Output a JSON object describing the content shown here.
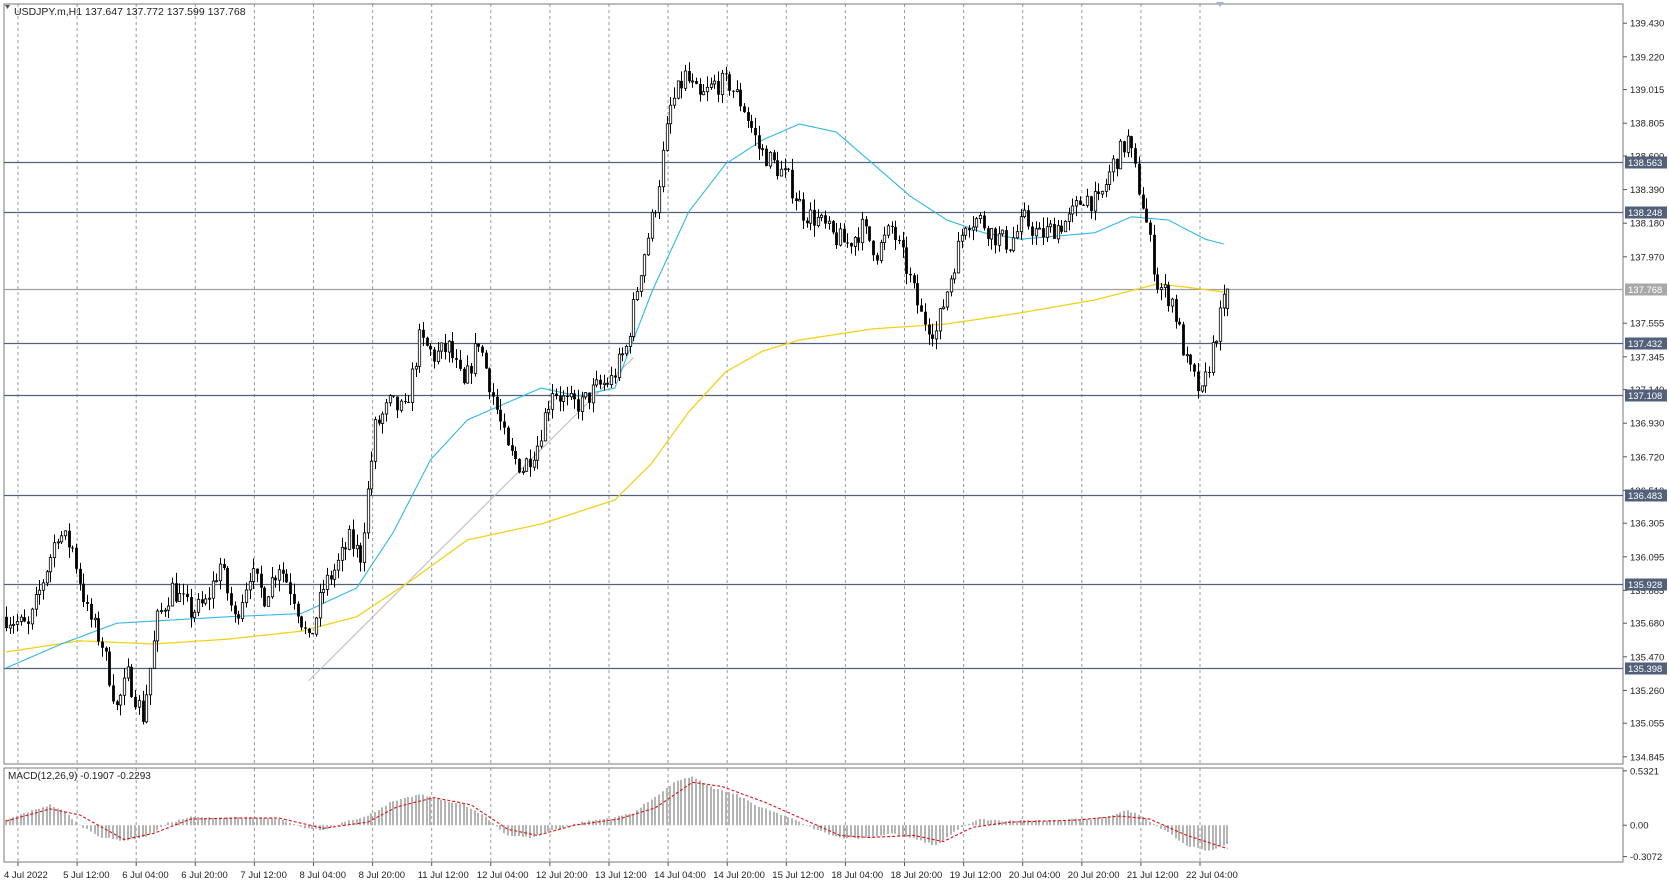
{
  "header": {
    "main_label": "USDJPY.m,H1  137.647 137.772 137.599 137.768",
    "macd_label": "MACD(12,26,9) -0.1907 -0.2293"
  },
  "colors": {
    "candle": "#000000",
    "ma_fast": "#30b8e8",
    "ma_slow": "#f2d21c",
    "grid": "#707070",
    "hline": "#52607a",
    "current_line": "#a0a0a0",
    "macd_hist": "#b4b4b4",
    "macd_signal": "#e01010",
    "trendline": "#b8b8b8"
  },
  "chart_data": [
    {
      "type": "candlestick",
      "symbol": "USDJPY.m",
      "timeframe": "H1",
      "last_ohlc": {
        "open": 137.647,
        "high": 137.772,
        "low": 137.599,
        "close": 137.768
      },
      "ylim": [
        134.8,
        139.55
      ],
      "y_ticks": [
        "139.430",
        "139.220",
        "139.015",
        "138.805",
        "138.600",
        "138.390",
        "138.180",
        "137.970",
        "137.555",
        "137.345",
        "137.140",
        "136.930",
        "136.720",
        "136.510",
        "136.305",
        "136.095",
        "135.885",
        "135.680",
        "135.470",
        "135.260",
        "135.055",
        "134.845"
      ],
      "x_ticks": [
        "4 Jul 2022",
        "5 Jul 12:00",
        "6 Jul 04:00",
        "6 Jul 20:00",
        "7 Jul 12:00",
        "8 Jul 04:00",
        "8 Jul 20:00",
        "11 Jul 12:00",
        "12 Jul 04:00",
        "12 Jul 20:00",
        "13 Jul 12:00",
        "14 Jul 04:00",
        "14 Jul 20:00",
        "15 Jul 12:00",
        "18 Jul 04:00",
        "18 Jul 20:00",
        "19 Jul 12:00",
        "20 Jul 04:00",
        "20 Jul 20:00",
        "21 Jul 12:00",
        "22 Jul 04:00"
      ],
      "price_levels": [
        {
          "value": 138.563,
          "label": "138.563"
        },
        {
          "value": 138.248,
          "label": "138.248"
        },
        {
          "value": 137.768,
          "label": "137.768",
          "current": true
        },
        {
          "value": 137.432,
          "label": "137.432"
        },
        {
          "value": 137.108,
          "label": "137.108"
        },
        {
          "value": 136.483,
          "label": "136.483"
        },
        {
          "value": 135.928,
          "label": "135.928"
        },
        {
          "value": 135.398,
          "label": "135.398"
        }
      ],
      "close_anchors": [
        [
          0,
          135.72
        ],
        [
          6,
          135.65
        ],
        [
          10,
          135.95
        ],
        [
          14,
          136.25
        ],
        [
          18,
          136.15
        ],
        [
          22,
          135.75
        ],
        [
          26,
          135.55
        ],
        [
          30,
          135.15
        ],
        [
          33,
          135.35
        ],
        [
          37,
          135.1
        ],
        [
          41,
          135.7
        ],
        [
          45,
          135.9
        ],
        [
          50,
          135.75
        ],
        [
          54,
          135.8
        ],
        [
          58,
          136.05
        ],
        [
          62,
          135.7
        ],
        [
          66,
          136.0
        ],
        [
          70,
          135.85
        ],
        [
          74,
          136.05
        ],
        [
          78,
          135.85
        ],
        [
          82,
          135.55
        ],
        [
          86,
          135.9
        ],
        [
          90,
          136.05
        ],
        [
          93,
          136.2
        ],
        [
          96,
          136.1
        ],
        [
          100,
          136.9
        ],
        [
          104,
          137.05
        ],
        [
          108,
          137.0
        ],
        [
          112,
          137.45
        ],
        [
          116,
          137.35
        ],
        [
          120,
          137.4
        ],
        [
          124,
          137.15
        ],
        [
          128,
          137.45
        ],
        [
          132,
          137.1
        ],
        [
          136,
          136.75
        ],
        [
          140,
          136.65
        ],
        [
          144,
          136.8
        ],
        [
          148,
          137.15
        ],
        [
          152,
          137.05
        ],
        [
          156,
          137.05
        ],
        [
          160,
          137.15
        ],
        [
          164,
          137.2
        ],
        [
          168,
          137.4
        ],
        [
          172,
          137.9
        ],
        [
          176,
          138.3
        ],
        [
          180,
          138.9
        ],
        [
          184,
          139.1
        ],
        [
          188,
          138.95
        ],
        [
          192,
          139.05
        ],
        [
          196,
          139.05
        ],
        [
          200,
          138.9
        ],
        [
          204,
          138.65
        ],
        [
          208,
          138.55
        ],
        [
          212,
          138.45
        ],
        [
          216,
          138.25
        ],
        [
          220,
          138.2
        ],
        [
          224,
          138.1
        ],
        [
          228,
          138.05
        ],
        [
          232,
          138.15
        ],
        [
          236,
          138.0
        ],
        [
          240,
          138.15
        ],
        [
          244,
          137.9
        ],
        [
          248,
          137.6
        ],
        [
          252,
          137.5
        ],
        [
          256,
          137.85
        ],
        [
          260,
          138.2
        ],
        [
          264,
          138.2
        ],
        [
          268,
          138.1
        ],
        [
          272,
          138.05
        ],
        [
          276,
          138.2
        ],
        [
          280,
          138.1
        ],
        [
          284,
          138.15
        ],
        [
          288,
          138.2
        ],
        [
          292,
          138.35
        ],
        [
          296,
          138.3
        ],
        [
          300,
          138.55
        ],
        [
          304,
          138.7
        ],
        [
          308,
          138.3
        ],
        [
          312,
          137.8
        ],
        [
          316,
          137.7
        ],
        [
          320,
          137.3
        ],
        [
          324,
          137.1
        ],
        [
          328,
          137.5
        ],
        [
          331,
          137.768
        ]
      ],
      "ma_fast": [
        [
          0,
          135.4
        ],
        [
          15,
          135.55
        ],
        [
          30,
          135.68
        ],
        [
          45,
          135.7
        ],
        [
          60,
          135.72
        ],
        [
          80,
          135.74
        ],
        [
          95,
          135.9
        ],
        [
          105,
          136.25
        ],
        [
          115,
          136.7
        ],
        [
          125,
          136.95
        ],
        [
          135,
          137.05
        ],
        [
          145,
          137.15
        ],
        [
          155,
          137.1
        ],
        [
          165,
          137.15
        ],
        [
          175,
          137.75
        ],
        [
          185,
          138.25
        ],
        [
          195,
          138.55
        ],
        [
          205,
          138.7
        ],
        [
          215,
          138.8
        ],
        [
          225,
          138.75
        ],
        [
          235,
          138.55
        ],
        [
          245,
          138.35
        ],
        [
          255,
          138.2
        ],
        [
          265,
          138.12
        ],
        [
          275,
          138.08
        ],
        [
          285,
          138.1
        ],
        [
          295,
          138.12
        ],
        [
          305,
          138.22
        ],
        [
          315,
          138.2
        ],
        [
          325,
          138.08
        ],
        [
          330,
          138.05
        ]
      ],
      "ma_slow": [
        [
          0,
          135.5
        ],
        [
          20,
          135.57
        ],
        [
          40,
          135.55
        ],
        [
          60,
          135.58
        ],
        [
          80,
          135.63
        ],
        [
          95,
          135.72
        ],
        [
          110,
          135.95
        ],
        [
          125,
          136.2
        ],
        [
          145,
          136.3
        ],
        [
          165,
          136.45
        ],
        [
          175,
          136.68
        ],
        [
          185,
          137.0
        ],
        [
          195,
          137.25
        ],
        [
          205,
          137.38
        ],
        [
          215,
          137.45
        ],
        [
          235,
          137.52
        ],
        [
          255,
          137.55
        ],
        [
          275,
          137.62
        ],
        [
          295,
          137.7
        ],
        [
          312,
          137.8
        ],
        [
          320,
          137.78
        ],
        [
          330,
          137.75
        ]
      ],
      "trendline": [
        [
          82,
          135.32
        ],
        [
          170,
          137.34
        ]
      ]
    },
    {
      "type": "bar",
      "name": "MACD(12,26,9)",
      "macd": -0.1907,
      "signal": -0.2293,
      "ylim": [
        -0.36,
        0.56
      ],
      "y_ticks": [
        "0.5321",
        "0.00",
        "-0.3072"
      ],
      "hist_anchors": [
        [
          0,
          0.05
        ],
        [
          6,
          0.13
        ],
        [
          12,
          0.2
        ],
        [
          16,
          0.13
        ],
        [
          20,
          0.0
        ],
        [
          26,
          -0.12
        ],
        [
          32,
          -0.15
        ],
        [
          38,
          -0.11
        ],
        [
          44,
          0.02
        ],
        [
          50,
          0.08
        ],
        [
          56,
          0.07
        ],
        [
          62,
          0.08
        ],
        [
          68,
          0.07
        ],
        [
          74,
          0.06
        ],
        [
          80,
          -0.02
        ],
        [
          86,
          -0.05
        ],
        [
          92,
          0.04
        ],
        [
          98,
          0.09
        ],
        [
          104,
          0.22
        ],
        [
          112,
          0.3
        ],
        [
          118,
          0.25
        ],
        [
          124,
          0.2
        ],
        [
          130,
          0.08
        ],
        [
          136,
          -0.1
        ],
        [
          142,
          -0.12
        ],
        [
          148,
          -0.05
        ],
        [
          156,
          0.03
        ],
        [
          164,
          0.07
        ],
        [
          170,
          0.12
        ],
        [
          176,
          0.28
        ],
        [
          182,
          0.44
        ],
        [
          186,
          0.47
        ],
        [
          192,
          0.36
        ],
        [
          198,
          0.3
        ],
        [
          204,
          0.18
        ],
        [
          212,
          0.08
        ],
        [
          220,
          -0.05
        ],
        [
          226,
          -0.12
        ],
        [
          232,
          -0.13
        ],
        [
          240,
          -0.08
        ],
        [
          246,
          -0.13
        ],
        [
          252,
          -0.2
        ],
        [
          258,
          -0.04
        ],
        [
          264,
          0.06
        ],
        [
          270,
          0.04
        ],
        [
          276,
          0.05
        ],
        [
          282,
          0.04
        ],
        [
          288,
          0.06
        ],
        [
          294,
          0.06
        ],
        [
          300,
          0.1
        ],
        [
          304,
          0.15
        ],
        [
          308,
          0.08
        ],
        [
          314,
          -0.05
        ],
        [
          320,
          -0.2
        ],
        [
          326,
          -0.25
        ],
        [
          331,
          -0.19
        ]
      ],
      "signal_anchors": [
        [
          0,
          0.04
        ],
        [
          12,
          0.16
        ],
        [
          20,
          0.1
        ],
        [
          32,
          -0.14
        ],
        [
          40,
          -0.08
        ],
        [
          50,
          0.06
        ],
        [
          62,
          0.07
        ],
        [
          74,
          0.07
        ],
        [
          86,
          -0.03
        ],
        [
          98,
          0.03
        ],
        [
          106,
          0.18
        ],
        [
          116,
          0.27
        ],
        [
          126,
          0.2
        ],
        [
          136,
          -0.04
        ],
        [
          144,
          -0.1
        ],
        [
          154,
          0.0
        ],
        [
          166,
          0.06
        ],
        [
          176,
          0.17
        ],
        [
          186,
          0.42
        ],
        [
          194,
          0.38
        ],
        [
          206,
          0.22
        ],
        [
          216,
          0.06
        ],
        [
          226,
          -0.1
        ],
        [
          234,
          -0.12
        ],
        [
          246,
          -0.1
        ],
        [
          254,
          -0.16
        ],
        [
          262,
          -0.02
        ],
        [
          272,
          0.03
        ],
        [
          290,
          0.05
        ],
        [
          302,
          0.09
        ],
        [
          310,
          0.06
        ],
        [
          320,
          -0.1
        ],
        [
          331,
          -0.2293
        ]
      ]
    }
  ]
}
